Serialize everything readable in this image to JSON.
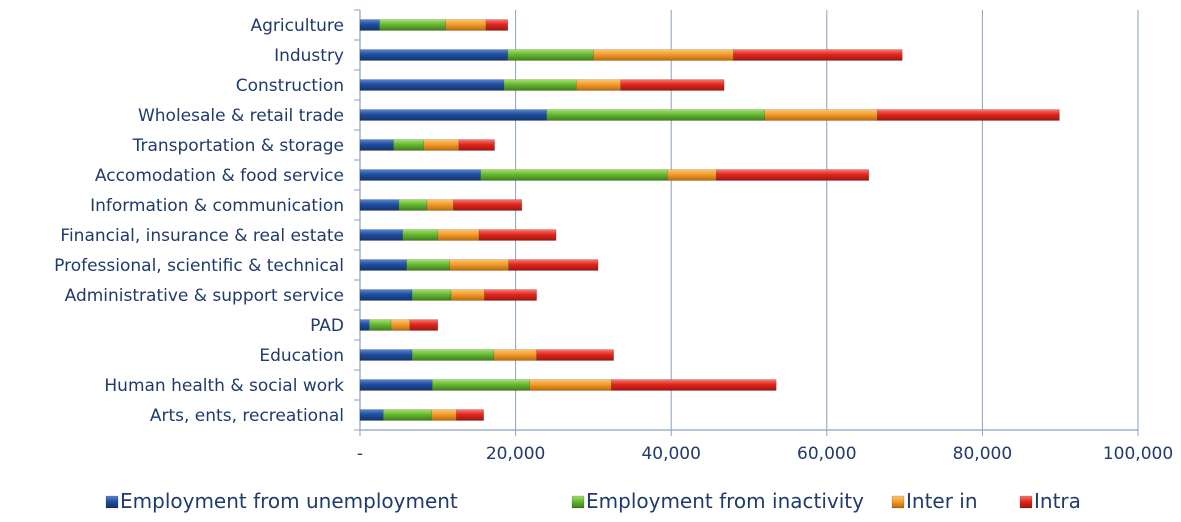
{
  "chart_data": {
    "type": "bar",
    "orientation": "horizontal",
    "stacked": true,
    "categories": [
      "Agriculture",
      "Industry",
      "Construction",
      "Wholesale & retail trade",
      "Transportation & storage",
      "Accomodation & food service",
      "Information & communication",
      "Financial, insurance & real estate",
      "Professional, scientific & technical",
      "Administrative & support service",
      "PAD",
      "Education",
      "Human health & social work",
      "Arts, ents, recreational"
    ],
    "series": [
      {
        "name": "Employment from unemployment",
        "color": "#1f4e9e",
        "values": [
          2500,
          19000,
          18500,
          24000,
          4300,
          15500,
          5000,
          5500,
          6000,
          6700,
          1200,
          6700,
          9300,
          3000
        ]
      },
      {
        "name": "Employment from inactivity",
        "color": "#66b832",
        "values": [
          8500,
          11000,
          9300,
          28000,
          3900,
          24000,
          3600,
          4500,
          5500,
          5000,
          2800,
          10500,
          12500,
          6200
        ]
      },
      {
        "name": "Inter in",
        "color": "#f39c2b",
        "values": [
          5200,
          18000,
          5700,
          14500,
          4500,
          6300,
          3400,
          5300,
          7600,
          4300,
          2400,
          5500,
          10500,
          3200
        ]
      },
      {
        "name": "Intra",
        "color": "#e4261e",
        "values": [
          2800,
          21700,
          13300,
          23400,
          4600,
          19600,
          8800,
          9900,
          11500,
          6700,
          3600,
          9900,
          21200,
          3500
        ]
      }
    ],
    "xlim": [
      0,
      100000
    ],
    "x_ticks": [
      "-",
      "20,000",
      "40,000",
      "60,000",
      "80,000",
      "100,000"
    ],
    "x_tick_values": [
      0,
      20000,
      40000,
      60000,
      80000,
      100000
    ],
    "grid": "vertical",
    "legend_position": "bottom"
  }
}
